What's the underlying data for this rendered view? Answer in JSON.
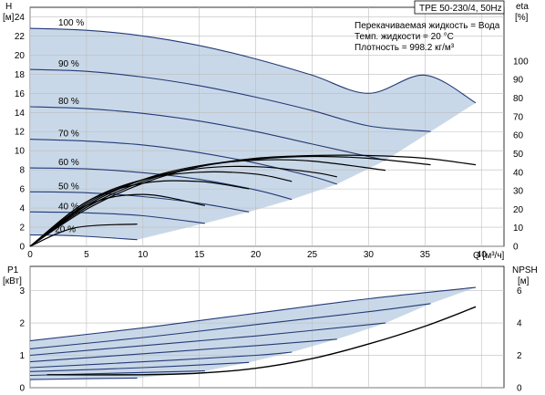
{
  "chart_data": [
    {
      "type": "line",
      "panel": "head-efficiency",
      "title": "TPE 50-230/4, 50Hz",
      "annotations": [
        "Перекачиваемая жидкость = Вода",
        "Темп. жидкости = 20 °C",
        "Плотность = 998.2 кг/м³"
      ],
      "xlabel": "Q [м³/ч]",
      "ylabel_left": [
        "H",
        "[м]"
      ],
      "ylabel_right": [
        "eta",
        "[%]"
      ],
      "xlim": [
        0,
        42
      ],
      "ylim_left": [
        0,
        25
      ],
      "ylim_right": [
        0,
        129
      ],
      "x_ticks": [
        0,
        5,
        10,
        15,
        20,
        25,
        30,
        35,
        40
      ],
      "y_ticks_left": [
        0,
        2,
        4,
        6,
        8,
        10,
        12,
        14,
        16,
        18,
        20,
        22,
        24
      ],
      "y_ticks_right": [
        0,
        10,
        20,
        30,
        40,
        50,
        60,
        70,
        80,
        90,
        100
      ],
      "grid": true,
      "operating_area_color": "#c9d8e8",
      "curve_color": "#233a77",
      "efficiency_color": "#000000",
      "head_curves": [
        {
          "label": "100 %",
          "x": [
            0,
            5,
            10,
            15,
            20,
            25,
            30,
            35,
            39.5
          ],
          "y": [
            22.8,
            22.6,
            22.0,
            21.0,
            19.6,
            17.9,
            16.0,
            17.9,
            15.0
          ]
        },
        {
          "label": "90 %",
          "x": [
            0,
            5,
            10,
            15,
            20,
            25,
            30,
            35.5
          ],
          "y": [
            18.5,
            18.3,
            17.7,
            16.8,
            15.6,
            14.2,
            12.6,
            12.0
          ]
        },
        {
          "label": "80 %",
          "x": [
            0,
            5,
            10,
            15,
            20,
            25,
            31.5
          ],
          "y": [
            14.6,
            14.4,
            13.9,
            13.1,
            12.0,
            10.7,
            9.0
          ]
        },
        {
          "label": "70 %",
          "x": [
            0,
            5,
            10,
            15,
            20,
            25,
            27.2
          ],
          "y": [
            11.2,
            11.0,
            10.6,
            9.8,
            8.7,
            7.3,
            6.5
          ]
        },
        {
          "label": "60 %",
          "x": [
            0,
            5,
            10,
            15,
            20,
            23.2
          ],
          "y": [
            8.2,
            8.1,
            7.7,
            7.0,
            5.9,
            4.9
          ]
        },
        {
          "label": "50 %",
          "x": [
            0,
            5,
            10,
            15,
            19.4
          ],
          "y": [
            5.7,
            5.6,
            5.2,
            4.5,
            3.6
          ]
        },
        {
          "label": "40 %",
          "x": [
            0,
            5,
            10,
            15.5
          ],
          "y": [
            3.6,
            3.5,
            3.2,
            2.4
          ]
        },
        {
          "label": "20 %",
          "x": [
            0,
            4,
            9.5
          ],
          "y": [
            1.2,
            1.1,
            0.7
          ]
        }
      ],
      "efficiency_curves": [
        {
          "x": [
            0,
            5,
            10,
            15,
            20,
            25,
            30,
            35,
            39.5
          ],
          "y": [
            0,
            20,
            34,
            43,
            47.5,
            49,
            49,
            47.5,
            44
          ]
        },
        {
          "x": [
            0,
            5,
            10,
            15,
            20,
            25,
            30,
            35.5
          ],
          "y": [
            0,
            21,
            35,
            43,
            47,
            48.5,
            47.5,
            44
          ]
        },
        {
          "x": [
            0,
            5,
            10,
            15,
            20,
            25,
            31.5
          ],
          "y": [
            0,
            22,
            36,
            43.5,
            46.5,
            46,
            41
          ]
        },
        {
          "x": [
            0,
            5,
            10,
            15,
            20,
            25,
            27.2
          ],
          "y": [
            0,
            23,
            36,
            42,
            43,
            40,
            37.5
          ]
        },
        {
          "x": [
            0,
            5,
            10,
            15,
            20,
            23.2
          ],
          "y": [
            0,
            24,
            36,
            40,
            39,
            35
          ]
        },
        {
          "x": [
            0,
            5,
            10,
            15,
            19.4
          ],
          "y": [
            0,
            24,
            34,
            35,
            31
          ]
        },
        {
          "x": [
            0,
            5,
            10,
            15.5
          ],
          "y": [
            0,
            22,
            28,
            22
          ]
        },
        {
          "x": [
            0,
            4,
            9.5
          ],
          "y": [
            0,
            10,
            12
          ]
        }
      ]
    },
    {
      "type": "line",
      "panel": "power-npsh",
      "ylabel_left": [
        "P1",
        "[кВт]"
      ],
      "ylabel_right": [
        "NPSH",
        "[м]"
      ],
      "xlim": [
        0,
        42
      ],
      "ylim_left": [
        0,
        3.75
      ],
      "ylim_right": [
        0,
        7.5
      ],
      "y_ticks_left": [
        0,
        1,
        2,
        3
      ],
      "y_ticks_right": [
        0,
        2,
        4,
        6
      ],
      "grid": true,
      "power_curves": [
        {
          "x": [
            0,
            10,
            20,
            30,
            39.5
          ],
          "y": [
            1.45,
            1.85,
            2.3,
            2.75,
            3.1
          ]
        },
        {
          "x": [
            0,
            10,
            20,
            30,
            35.5
          ],
          "y": [
            1.2,
            1.55,
            1.95,
            2.35,
            2.6
          ]
        },
        {
          "x": [
            0,
            10,
            20,
            31.5
          ],
          "y": [
            1.0,
            1.3,
            1.6,
            2.0
          ]
        },
        {
          "x": [
            0,
            10,
            20,
            27.2
          ],
          "y": [
            0.8,
            1.05,
            1.3,
            1.5
          ]
        },
        {
          "x": [
            0,
            10,
            20,
            23.2
          ],
          "y": [
            0.62,
            0.8,
            1.0,
            1.1
          ]
        },
        {
          "x": [
            0,
            10,
            19.4
          ],
          "y": [
            0.5,
            0.62,
            0.78
          ]
        },
        {
          "x": [
            0,
            10,
            15.5
          ],
          "y": [
            0.38,
            0.47,
            0.52
          ]
        },
        {
          "x": [
            0,
            5,
            9.5
          ],
          "y": [
            0.25,
            0.28,
            0.3
          ]
        }
      ],
      "npsh_curve": {
        "x": [
          1.5,
          10,
          15,
          20,
          25,
          30,
          35,
          39.5
        ],
        "y": [
          0.8,
          0.8,
          0.9,
          1.2,
          1.8,
          2.7,
          3.8,
          5.0
        ]
      }
    }
  ]
}
